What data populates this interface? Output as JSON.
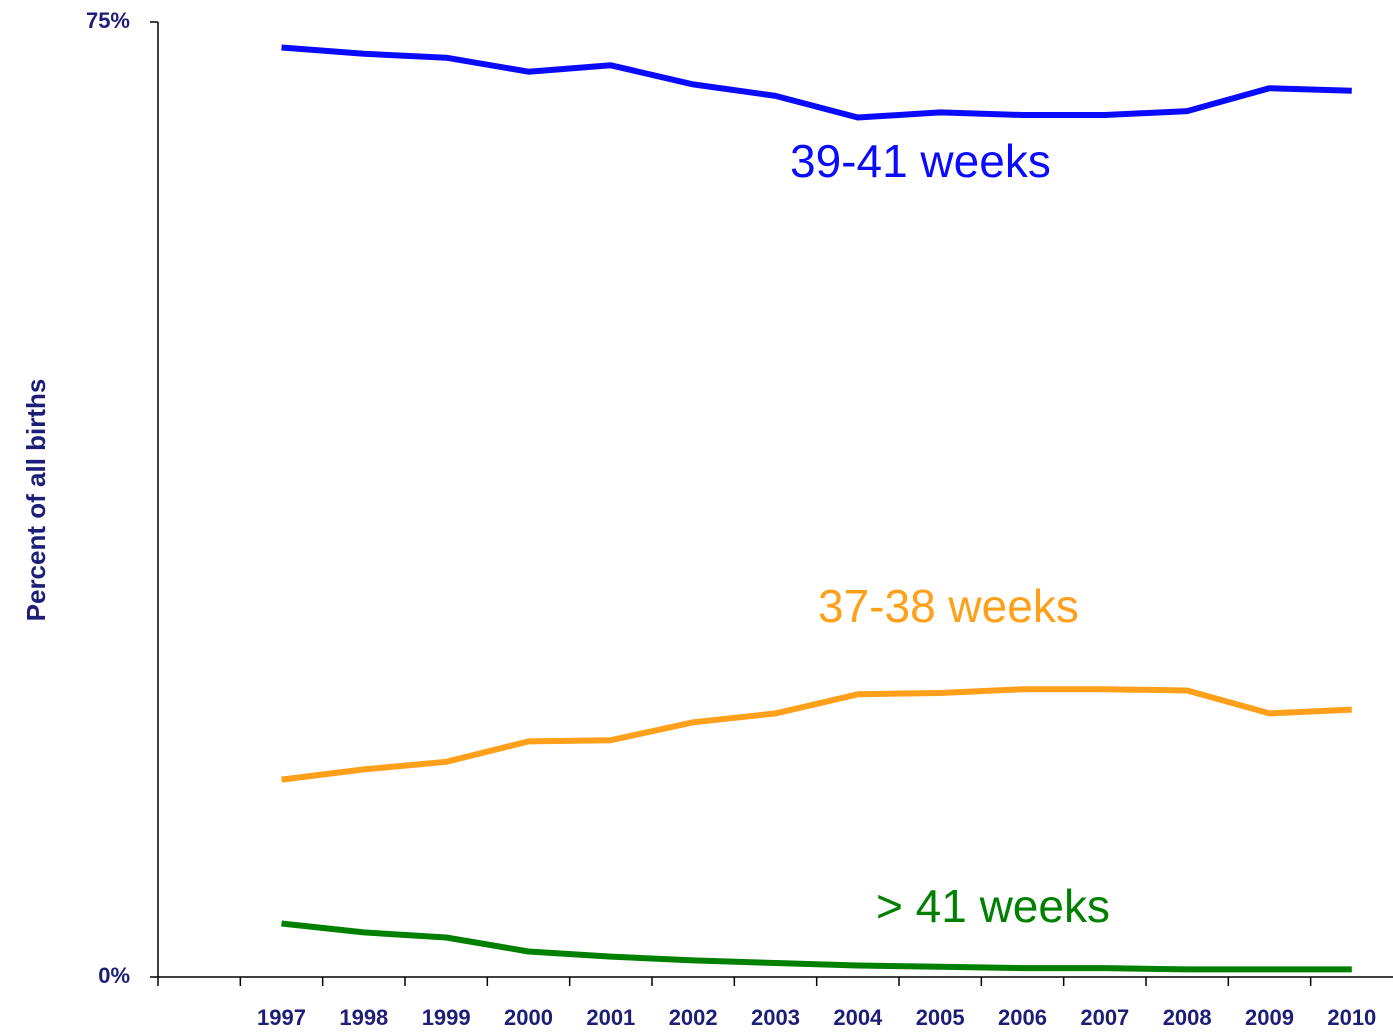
{
  "chart_data": {
    "type": "line",
    "y_label": "Percent of all births",
    "categories": [
      null,
      "1997",
      "1998",
      "1999",
      "2000",
      "2001",
      "2002",
      "2003",
      "2004",
      "2005",
      "2006",
      "2007",
      "2008",
      "2009",
      "2010"
    ],
    "series": [
      {
        "name": "39-41 weeks",
        "color": "#0a0aff",
        "values": [
          null,
          73.0,
          72.5,
          72.2,
          71.1,
          71.6,
          70.1,
          69.2,
          67.5,
          67.9,
          67.7,
          67.7,
          68.0,
          69.8,
          69.6
        ]
      },
      {
        "name": "37-38 weeks",
        "color": "#ff9f1a",
        "values": [
          null,
          15.5,
          16.3,
          16.9,
          18.5,
          18.6,
          20.0,
          20.7,
          22.2,
          22.3,
          22.6,
          22.6,
          22.5,
          20.7,
          21.0
        ]
      },
      {
        "name": "> 41 weeks",
        "color": "#008000",
        "values": [
          null,
          4.2,
          3.5,
          3.1,
          2.0,
          1.6,
          1.3,
          1.1,
          0.9,
          0.8,
          0.7,
          0.7,
          0.6,
          0.6,
          0.6
        ]
      }
    ],
    "ylim": [
      0,
      75
    ],
    "yticks": [
      {
        "value": 0,
        "label": "0%"
      },
      {
        "value": 75,
        "label": "75%"
      }
    ],
    "grid": false
  }
}
